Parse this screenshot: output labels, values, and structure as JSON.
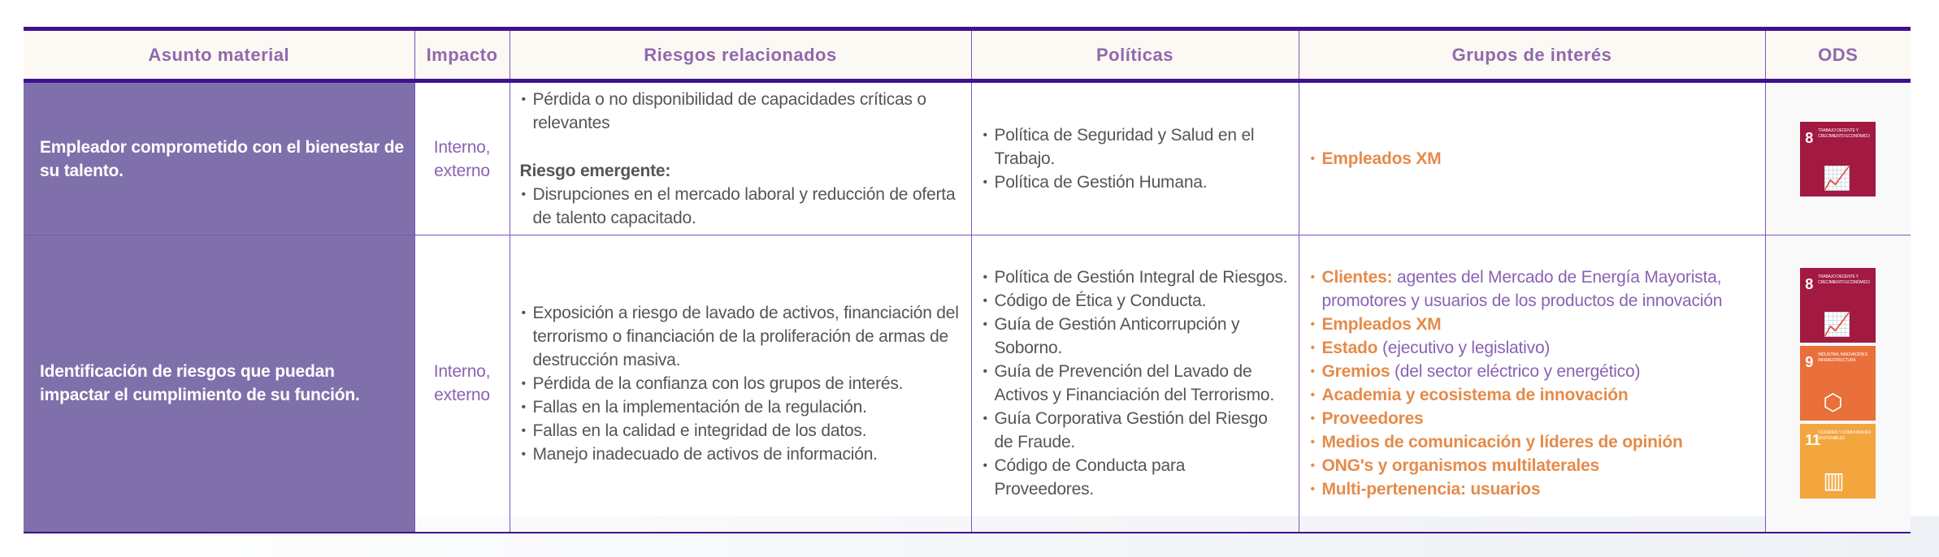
{
  "headers": [
    "Asunto material",
    "Impacto",
    "Riesgos relacionados",
    "Políticas",
    "Grupos de interés",
    "ODS"
  ],
  "rows": [
    {
      "asunto": "Empleador comprometido con el bienestar de su talento.",
      "impacto": "Interno, externo",
      "riesgos": [
        "Pérdida o no disponibilidad de capacidades críticas o relevantes"
      ],
      "riesgo_emergente_label": "Riesgo emergente:",
      "riesgos_emergentes": [
        "Disrupciones en el mercado laboral y reducción de oferta de talento capacitado."
      ],
      "politicas": [
        "Política de Seguridad y Salud en el Trabajo.",
        "Política de Gestión Humana."
      ],
      "grupos": [
        {
          "name": "Empleados XM",
          "desc": ""
        }
      ],
      "ods": [
        {
          "number": "8",
          "label": "Trabajo decente y crecimiento económico",
          "color": "#a21942",
          "icon": "growth-chart-icon"
        }
      ]
    },
    {
      "asunto": "Identificación de riesgos que puedan impactar el cumplimiento de su función.",
      "impacto": "Interno, externo",
      "riesgos": [
        "Exposición a riesgo de lavado de activos, financiación del terrorismo o financiación de la proliferación de armas de destrucción masiva.",
        "Pérdida de la confianza con los grupos de interés.",
        "Fallas en la implementación de la regulación.",
        "Fallas en la calidad e integridad de los datos.",
        "Manejo inadecuado de activos de información."
      ],
      "politicas": [
        "Política de Gestión Integral de Riesgos.",
        "Código de Ética y Conducta.",
        "Guía de Gestión Anticorrupción y Soborno.",
        "Guía de Prevención del Lavado de Activos y Financiación del Terrorismo.",
        "Guía Corporativa Gestión del Riesgo de Fraude.",
        "Código de Conducta para Proveedores."
      ],
      "grupos": [
        {
          "name": "Clientes:",
          "desc": " agentes del Mercado de Energía Mayorista, promotores y usuarios de los productos de innovación"
        },
        {
          "name": "Empleados XM",
          "desc": ""
        },
        {
          "name": "Estado",
          "desc": " (ejecutivo y legislativo)"
        },
        {
          "name": "Gremios",
          "desc": " (del sector eléctrico y energético)"
        },
        {
          "name": "Academia y ecosistema de innovación",
          "desc": ""
        },
        {
          "name": "Proveedores",
          "desc": ""
        },
        {
          "name": "Medios de comunicación y líderes de opinión",
          "desc": ""
        },
        {
          "name": "ONG's y organismos multilaterales",
          "desc": ""
        },
        {
          "name": "Multi-pertenencia: usuarios",
          "desc": ""
        }
      ],
      "ods": [
        {
          "number": "8",
          "label": "Trabajo decente y crecimiento económico",
          "color": "#a21942",
          "icon": "growth-chart-icon"
        },
        {
          "number": "9",
          "label": "Industria, innovación e infraestructura",
          "color": "#e9703a",
          "icon": "cubes-icon"
        },
        {
          "number": "11",
          "label": "Ciudades y comunidades sostenibles",
          "color": "#f3a53e",
          "icon": "city-icon"
        }
      ]
    }
  ]
}
